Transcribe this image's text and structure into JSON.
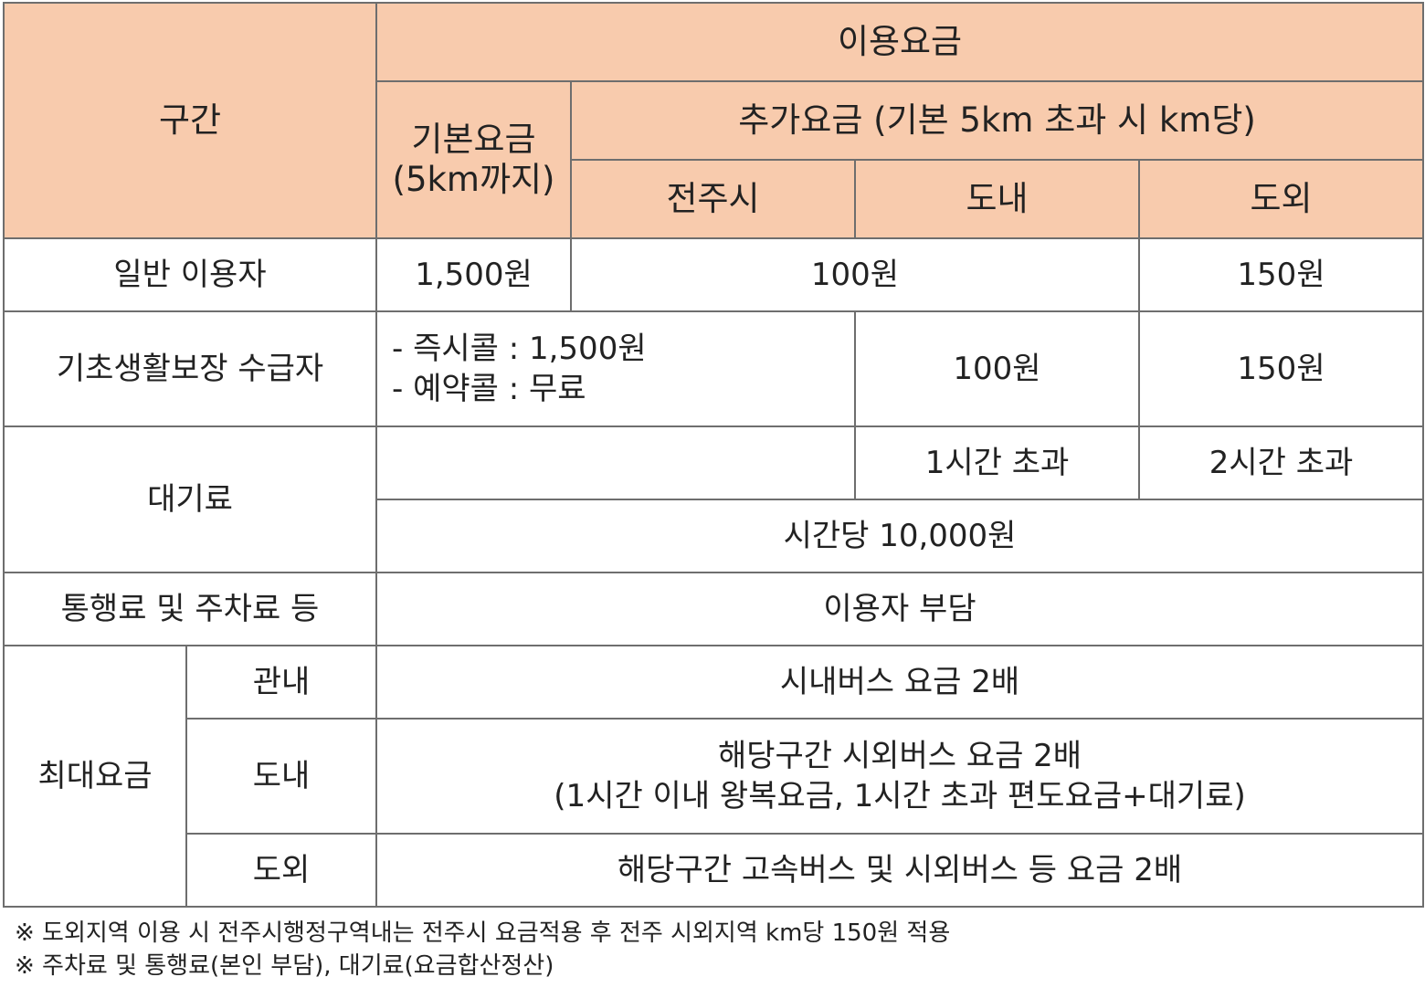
{
  "header": {
    "section": "구간",
    "fare": "이용요금",
    "base_fare_line1": "기본요금",
    "base_fare_line2": "(5km까지)",
    "extra_fare": "추가요금 (기본 5km 초과 시 km당)",
    "jeonju": "전주시",
    "in_province": "도내",
    "out_province": "도외"
  },
  "rows": {
    "general": {
      "label": "일반 이용자",
      "base": "1,500원",
      "in_city_province": "100원",
      "out_province": "150원"
    },
    "basic_livelihood": {
      "label": "기초생활보장 수급자",
      "instant_call": "- 즉시콜 : 1,500원",
      "reserved_call": "- 예약콜 : 무료",
      "in_province": "100원",
      "out_province": "150원"
    },
    "waiting": {
      "label": "대기료",
      "in_province": "1시간 초과",
      "out_province": "2시간 초과",
      "rate": "시간당 10,000원"
    },
    "tolls": {
      "label": "통행료 및 주차료 등",
      "value": "이용자 부담"
    },
    "max_fare": {
      "label": "최대요금",
      "local": {
        "label": "관내",
        "value": "시내버스 요금 2배"
      },
      "in_province": {
        "label": "도내",
        "value_line1": "해당구간 시외버스 요금 2배",
        "value_line2": "(1시간 이내 왕복요금, 1시간 초과 편도요금+대기료)"
      },
      "out_province": {
        "label": "도외",
        "value": "해당구간 고속버스 및 시외버스 등 요금 2배"
      }
    }
  },
  "notes": [
    "※ 도외지역 이용 시 전주시행정구역내는 전주시 요금적용 후 전주 시외지역 km당 150원 적용",
    "※ 주차료 및 통행료(본인 부담), 대기료(요금합산정산)"
  ],
  "colors": {
    "header_bg": "#f8cbad",
    "border": "#6e6e6e"
  }
}
